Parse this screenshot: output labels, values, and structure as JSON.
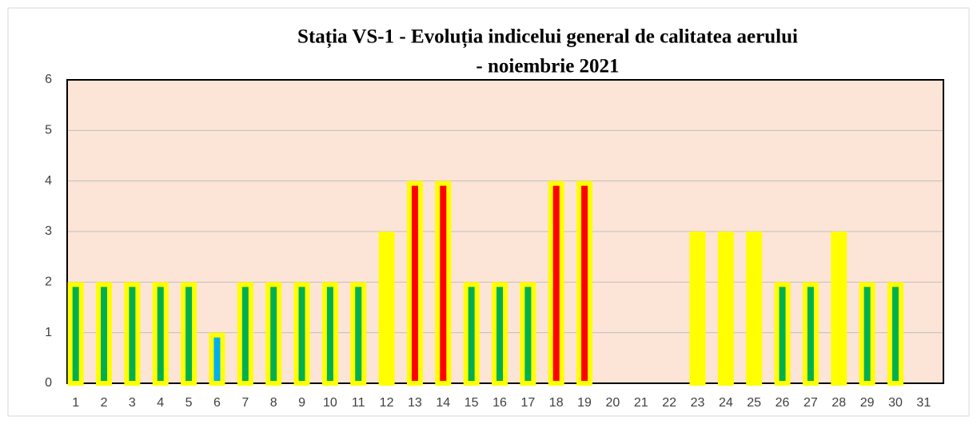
{
  "chart_data": {
    "type": "bar",
    "title": [
      "Stația VS-1 - Evoluția indicelui general de calitatea aerului",
      "- noiembrie 2021"
    ],
    "categories": [
      "1",
      "2",
      "3",
      "4",
      "5",
      "6",
      "7",
      "8",
      "9",
      "10",
      "11",
      "12",
      "13",
      "14",
      "15",
      "16",
      "17",
      "18",
      "19",
      "20",
      "21",
      "22",
      "23",
      "24",
      "25",
      "26",
      "27",
      "28",
      "29",
      "30",
      "31"
    ],
    "values": [
      2,
      2,
      2,
      2,
      2,
      1,
      2,
      2,
      2,
      2,
      2,
      3,
      4,
      4,
      2,
      2,
      2,
      4,
      4,
      null,
      null,
      null,
      3,
      3,
      3,
      2,
      2,
      3,
      2,
      2,
      null
    ],
    "colors": [
      "#00b050",
      "#00b050",
      "#00b050",
      "#00b050",
      "#00b050",
      "#00b0f0",
      "#00b050",
      "#00b050",
      "#00b050",
      "#00b050",
      "#00b050",
      "#ffff00",
      "#ff0000",
      "#ff0000",
      "#00b050",
      "#00b050",
      "#00b050",
      "#ff0000",
      "#ff0000",
      null,
      null,
      null,
      "#ffff00",
      "#ffff00",
      "#ffff00",
      "#00b050",
      "#00b050",
      "#ffff00",
      "#00b050",
      "#00b050",
      null
    ],
    "border_color": "#ffff00",
    "plot_background": "#fce4d6",
    "ylim": [
      0,
      6
    ],
    "yticks": [
      0,
      1,
      2,
      3,
      4,
      5,
      6
    ],
    "grid": true
  }
}
